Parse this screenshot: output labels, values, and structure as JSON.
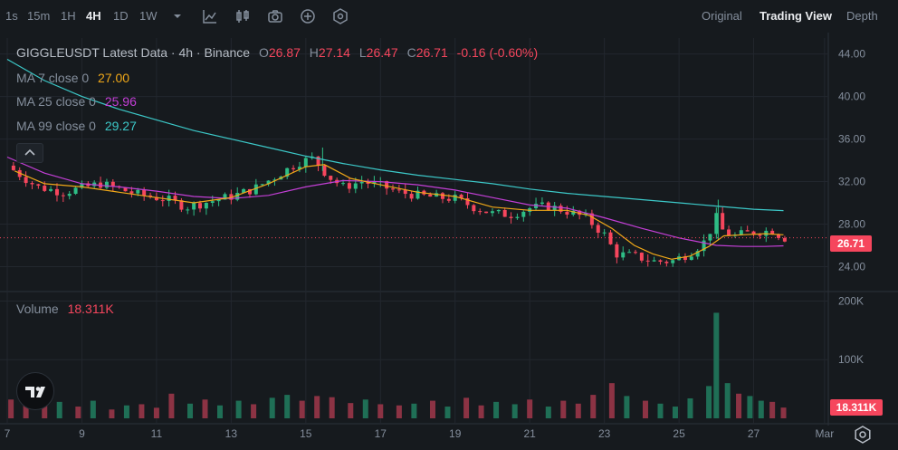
{
  "toolbar": {
    "timeframes": [
      "1s",
      "15m",
      "1H",
      "4H",
      "1D",
      "1W"
    ],
    "active_timeframe": "4H",
    "views": [
      "Original",
      "Trading View",
      "Depth"
    ],
    "active_view": "Trading View"
  },
  "legend": {
    "symbol_line": "GIGGLEUSDT Latest Data · 4h · Binance",
    "o_label": "O",
    "o_value": "26.87",
    "h_label": "H",
    "h_value": "27.14",
    "l_label": "L",
    "l_value": "26.47",
    "c_label": "C",
    "c_value": "26.71",
    "change": "-0.16 (-0.60%)",
    "ma7_label": "MA 7 close 0",
    "ma7_value": "27.00",
    "ma25_label": "MA 25 close 0",
    "ma25_value": "25.96",
    "ma99_label": "MA 99 close 0",
    "ma99_value": "29.27",
    "volume_label": "Volume",
    "volume_value": "18.311K"
  },
  "price_tag": "26.71",
  "volume_tag": "18.311K",
  "colors": {
    "up": "#2ebd85",
    "down": "#f6465d",
    "ma7": "#f0a818",
    "ma25": "#c33fd6",
    "ma99": "#3cc8c8",
    "grid": "#22272e",
    "text": "#848e9c"
  },
  "chart_data": [
    {
      "type": "candlestick",
      "title": "GIGGLEUSDT Latest Data · 4h · Binance",
      "y_ticks": [
        "44.00",
        "40.00",
        "36.00",
        "32.00",
        "28.00",
        "24.00"
      ],
      "ylim": [
        22.0,
        45.5
      ],
      "x_ticks": [
        "7",
        "9",
        "11",
        "13",
        "15",
        "17",
        "19",
        "21",
        "23",
        "25",
        "27",
        "Mar"
      ],
      "last_price": 26.71,
      "close_path": [
        [
          7.0,
          33.5
        ],
        [
          7.8,
          31.5
        ],
        [
          8.5,
          31.0
        ],
        [
          9.5,
          31.8
        ],
        [
          10.5,
          30.8
        ],
        [
          11.3,
          30.3
        ],
        [
          11.8,
          29.6
        ],
        [
          12.5,
          30.2
        ],
        [
          13.0,
          30.6
        ],
        [
          13.6,
          31.3
        ],
        [
          14.2,
          32.5
        ],
        [
          14.8,
          33.8
        ],
        [
          15.2,
          34.2
        ],
        [
          15.6,
          32.5
        ],
        [
          16.0,
          31.5
        ],
        [
          16.5,
          32.0
        ],
        [
          17.0,
          31.6
        ],
        [
          17.5,
          31.0
        ],
        [
          18.0,
          30.7
        ],
        [
          18.5,
          30.5
        ],
        [
          19.0,
          30.4
        ],
        [
          19.5,
          29.6
        ],
        [
          20.0,
          29.0
        ],
        [
          20.5,
          28.9
        ],
        [
          21.0,
          29.5
        ],
        [
          21.5,
          29.7
        ],
        [
          22.0,
          29.2
        ],
        [
          22.5,
          28.6
        ],
        [
          23.0,
          27.0
        ],
        [
          23.3,
          25.2
        ],
        [
          23.8,
          25.0
        ],
        [
          24.3,
          24.5
        ],
        [
          24.8,
          24.5
        ],
        [
          25.3,
          25.3
        ],
        [
          25.7,
          26.4
        ],
        [
          26.0,
          28.6
        ],
        [
          26.2,
          27.2
        ],
        [
          26.5,
          26.9
        ],
        [
          26.9,
          27.2
        ],
        [
          27.2,
          27.3
        ],
        [
          27.5,
          27.4
        ],
        [
          27.8,
          26.71
        ]
      ],
      "ma7": [
        [
          7.2,
          33.0
        ],
        [
          8.0,
          31.8
        ],
        [
          9.0,
          31.5
        ],
        [
          10.0,
          31.0
        ],
        [
          11.0,
          30.5
        ],
        [
          12.0,
          30.0
        ],
        [
          13.0,
          30.5
        ],
        [
          14.0,
          31.8
        ],
        [
          15.0,
          33.4
        ],
        [
          15.5,
          33.6
        ],
        [
          16.2,
          32.3
        ],
        [
          17.0,
          31.7
        ],
        [
          18.0,
          31.0
        ],
        [
          19.0,
          30.6
        ],
        [
          20.0,
          29.6
        ],
        [
          21.0,
          29.3
        ],
        [
          22.0,
          29.3
        ],
        [
          22.6,
          28.8
        ],
        [
          23.2,
          27.6
        ],
        [
          23.8,
          26.0
        ],
        [
          24.3,
          25.2
        ],
        [
          24.8,
          24.7
        ],
        [
          25.3,
          25.0
        ],
        [
          25.8,
          25.9
        ],
        [
          26.2,
          26.9
        ],
        [
          26.7,
          27.0
        ],
        [
          27.3,
          27.1
        ],
        [
          27.8,
          27.0
        ]
      ],
      "ma25": [
        [
          7.0,
          34.3
        ],
        [
          8.0,
          32.8
        ],
        [
          9.0,
          31.8
        ],
        [
          10.0,
          31.5
        ],
        [
          11.0,
          31.1
        ],
        [
          12.0,
          30.6
        ],
        [
          13.0,
          30.4
        ],
        [
          14.0,
          30.7
        ],
        [
          15.0,
          31.5
        ],
        [
          16.0,
          32.1
        ],
        [
          17.0,
          32.0
        ],
        [
          18.0,
          31.7
        ],
        [
          19.0,
          31.2
        ],
        [
          20.0,
          30.5
        ],
        [
          21.0,
          29.8
        ],
        [
          22.0,
          29.5
        ],
        [
          23.0,
          28.6
        ],
        [
          24.0,
          27.6
        ],
        [
          25.0,
          26.7
        ],
        [
          26.0,
          26.0
        ],
        [
          26.7,
          25.9
        ],
        [
          27.3,
          25.9
        ],
        [
          27.8,
          25.96
        ]
      ],
      "ma99": [
        [
          7.0,
          43.5
        ],
        [
          8.0,
          41.5
        ],
        [
          9.0,
          40.0
        ],
        [
          10.0,
          38.8
        ],
        [
          11.0,
          37.8
        ],
        [
          12.0,
          36.8
        ],
        [
          13.0,
          36.0
        ],
        [
          14.0,
          35.2
        ],
        [
          15.0,
          34.4
        ],
        [
          16.0,
          33.7
        ],
        [
          17.0,
          33.1
        ],
        [
          18.0,
          32.6
        ],
        [
          19.0,
          32.2
        ],
        [
          20.0,
          31.8
        ],
        [
          21.0,
          31.3
        ],
        [
          22.0,
          30.9
        ],
        [
          23.0,
          30.6
        ],
        [
          24.0,
          30.3
        ],
        [
          25.0,
          30.0
        ],
        [
          26.0,
          29.7
        ],
        [
          27.0,
          29.4
        ],
        [
          27.8,
          29.27
        ]
      ]
    },
    {
      "type": "bar",
      "title": "Volume",
      "y_ticks": [
        "200K",
        "100K"
      ],
      "ylim": [
        0,
        210
      ],
      "current": "18.311K",
      "volumes_k": [
        [
          7.1,
          32,
          "down"
        ],
        [
          7.5,
          25,
          "down"
        ],
        [
          8.0,
          22,
          "down"
        ],
        [
          8.4,
          28,
          "up"
        ],
        [
          8.9,
          20,
          "down"
        ],
        [
          9.3,
          30,
          "up"
        ],
        [
          9.8,
          15,
          "down"
        ],
        [
          10.2,
          22,
          "up"
        ],
        [
          10.6,
          24,
          "down"
        ],
        [
          11.0,
          18,
          "down"
        ],
        [
          11.4,
          42,
          "down"
        ],
        [
          11.9,
          25,
          "up"
        ],
        [
          12.3,
          32,
          "down"
        ],
        [
          12.7,
          22,
          "up"
        ],
        [
          13.2,
          30,
          "up"
        ],
        [
          13.6,
          24,
          "down"
        ],
        [
          14.1,
          35,
          "up"
        ],
        [
          14.5,
          40,
          "up"
        ],
        [
          14.9,
          30,
          "down"
        ],
        [
          15.3,
          38,
          "down"
        ],
        [
          15.7,
          36,
          "down"
        ],
        [
          16.2,
          26,
          "down"
        ],
        [
          16.6,
          32,
          "up"
        ],
        [
          17.0,
          24,
          "down"
        ],
        [
          17.5,
          22,
          "down"
        ],
        [
          17.9,
          25,
          "up"
        ],
        [
          18.4,
          30,
          "down"
        ],
        [
          18.8,
          20,
          "up"
        ],
        [
          19.3,
          35,
          "down"
        ],
        [
          19.7,
          22,
          "down"
        ],
        [
          20.1,
          28,
          "up"
        ],
        [
          20.6,
          24,
          "up"
        ],
        [
          21.0,
          32,
          "down"
        ],
        [
          21.5,
          20,
          "up"
        ],
        [
          21.9,
          30,
          "down"
        ],
        [
          22.3,
          25,
          "down"
        ],
        [
          22.7,
          40,
          "down"
        ],
        [
          23.2,
          60,
          "down"
        ],
        [
          23.6,
          38,
          "up"
        ],
        [
          24.1,
          30,
          "down"
        ],
        [
          24.5,
          25,
          "up"
        ],
        [
          24.9,
          20,
          "up"
        ],
        [
          25.3,
          34,
          "up"
        ],
        [
          25.8,
          55,
          "up"
        ],
        [
          26.0,
          180,
          "up"
        ],
        [
          26.3,
          60,
          "up"
        ],
        [
          26.6,
          42,
          "down"
        ],
        [
          26.9,
          38,
          "up"
        ],
        [
          27.2,
          30,
          "up"
        ],
        [
          27.5,
          28,
          "down"
        ],
        [
          27.8,
          18.311,
          "down"
        ]
      ]
    }
  ]
}
